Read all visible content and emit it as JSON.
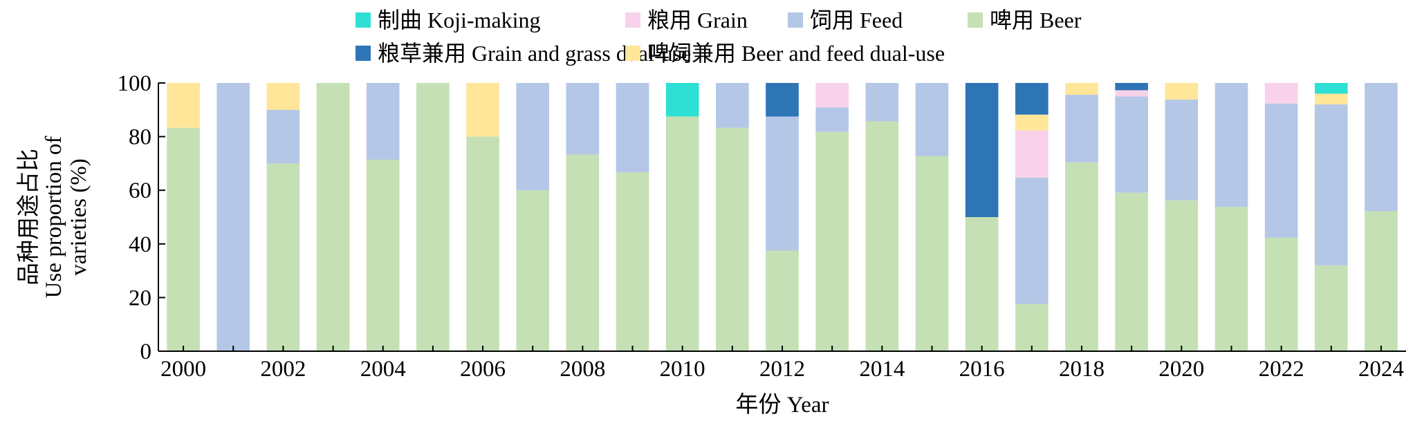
{
  "chart_data": {
    "type": "bar",
    "stacked": true,
    "title": "",
    "xlabel": "年份 Year",
    "ylabel_lines": [
      "品种用途占比",
      "Use proportion of",
      "varieties (%)"
    ],
    "ylim": [
      0,
      100
    ],
    "yticks": [
      "0",
      "20",
      "40",
      "60",
      "80",
      "100"
    ],
    "xtick_labels": [
      "2000",
      "2002",
      "2004",
      "2006",
      "2008",
      "2010",
      "2012",
      "2014",
      "2016",
      "2018",
      "2020",
      "2022",
      "2024"
    ],
    "legend_position": "top",
    "categories": [
      "2000",
      "2001",
      "2002",
      "2003",
      "2004",
      "2005",
      "2006",
      "2007",
      "2008",
      "2009",
      "2010",
      "2011",
      "2012",
      "2013",
      "2014",
      "2015",
      "2016",
      "2017",
      "2018",
      "2019",
      "2020",
      "2021",
      "2022",
      "2023",
      "2024"
    ],
    "series": [
      {
        "name": "啤用 Beer",
        "color": "#c5e0b4",
        "values": [
          83.3,
          0,
          70,
          100,
          71.4,
          100,
          80,
          60,
          73.3,
          66.7,
          87.5,
          83.3,
          37.5,
          81.8,
          85.7,
          72.7,
          50,
          17.6,
          70.4,
          59.1,
          56.3,
          53.8,
          42.3,
          32,
          52.2
        ]
      },
      {
        "name": "饲用 Feed",
        "color": "#b4c7e7",
        "values": [
          0,
          100,
          20,
          0,
          28.6,
          0,
          0,
          40,
          26.7,
          33.3,
          0,
          16.7,
          50,
          9.1,
          14.3,
          27.3,
          0,
          47.1,
          25.2,
          35.9,
          37.5,
          46.2,
          50,
          60,
          47.8
        ]
      },
      {
        "name": "粮用 Grain",
        "color": "#f8d2ea",
        "values": [
          0,
          0,
          0,
          0,
          0,
          0,
          0,
          0,
          0,
          0,
          0,
          0,
          0,
          9.1,
          0,
          0,
          0,
          17.6,
          0,
          2.3,
          0,
          0,
          7.7,
          0,
          0
        ]
      },
      {
        "name": "啤饲兼用 Beer and feed dual-use",
        "color": "#ffe699",
        "values": [
          16.7,
          0,
          10,
          0,
          0,
          0,
          20,
          0,
          0,
          0,
          0,
          0,
          0,
          0,
          0,
          0,
          0,
          5.9,
          4.4,
          0,
          6.2,
          0,
          0,
          4,
          0
        ]
      },
      {
        "name": "粮草兼用 Grain and grass dual-use",
        "color": "#2e75b6",
        "values": [
          0,
          0,
          0,
          0,
          0,
          0,
          0,
          0,
          0,
          0,
          0,
          0,
          12.5,
          0,
          0,
          0,
          50,
          11.8,
          0,
          2.7,
          0,
          0,
          0,
          0,
          0
        ]
      },
      {
        "name": "制曲 Koji-making",
        "color": "#2ee0d4",
        "values": [
          0,
          0,
          0,
          0,
          0,
          0,
          0,
          0,
          0,
          0,
          12.5,
          0,
          0,
          0,
          0,
          0,
          0,
          0,
          0,
          0,
          0,
          0,
          0,
          4,
          0
        ]
      }
    ],
    "legend_order": [
      [
        "制曲 Koji-making",
        "粮用 Grain",
        "饲用 Feed",
        "啤用 Beer"
      ],
      [
        "粮草兼用 Grain and grass dual-use",
        "啤饲兼用 Beer and feed dual-use"
      ]
    ]
  }
}
